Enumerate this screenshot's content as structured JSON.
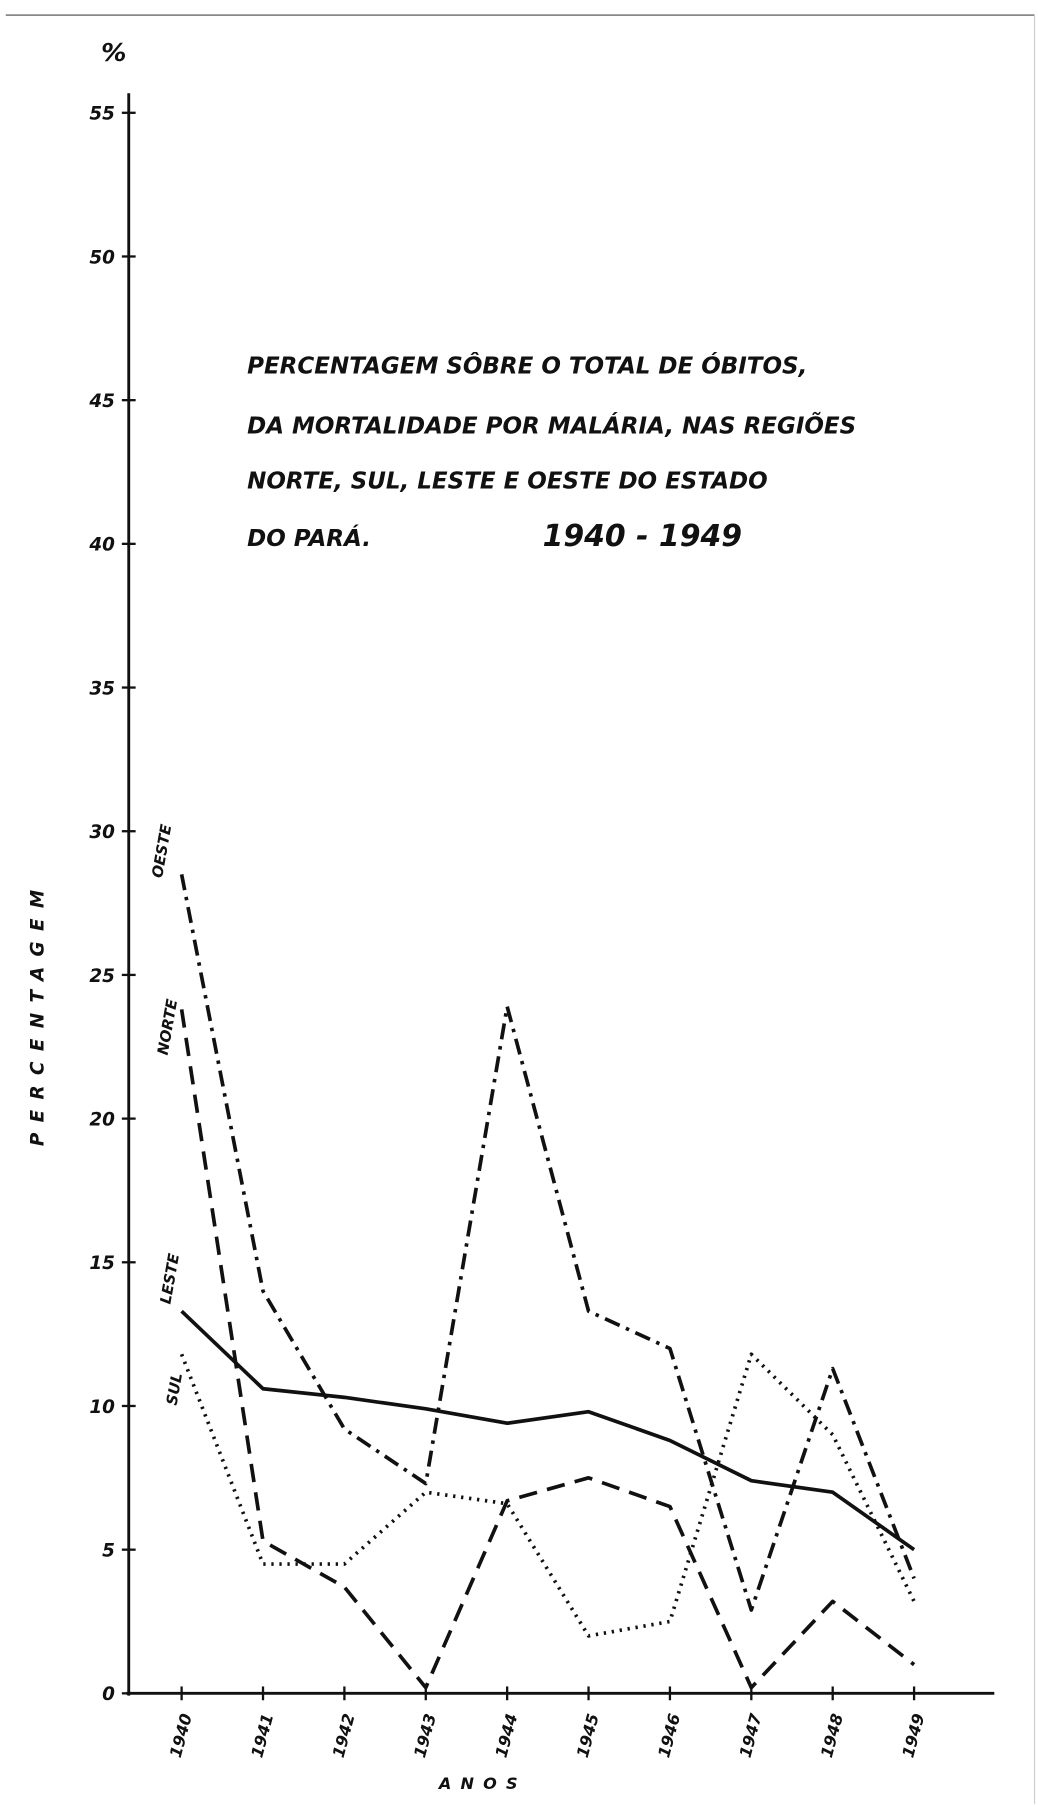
{
  "chart_data": {
    "type": "line",
    "unit_label": "%",
    "title_lines": [
      "PERCENTAGEM SÔBRE O TOTAL DE ÓBITOS,",
      "DA MORTALIDADE POR MALÁRIA, NAS REGIÕES",
      "NORTE, SUL, LESTE E OESTE DO ESTADO",
      "DO PARÁ."
    ],
    "period": "1940 - 1949",
    "y_label": "PERCENTAGEM",
    "x_label": "ANOS",
    "categories": [
      "1940",
      "1941",
      "1942",
      "1943",
      "1944",
      "1945",
      "1946",
      "1947",
      "1948",
      "1949"
    ],
    "series": [
      {
        "name": "OESTE",
        "color": "#111111",
        "dash": "dashdot",
        "values": [
          28.5,
          14.0,
          9.2,
          7.3,
          23.9,
          13.3,
          12.0,
          2.9,
          11.3,
          4.0
        ]
      },
      {
        "name": "NORTE",
        "color": "#111111",
        "dash": "dashed",
        "values": [
          23.8,
          5.3,
          3.7,
          0.2,
          6.7,
          7.5,
          6.5,
          0.2,
          3.2,
          1.0
        ]
      },
      {
        "name": "LESTE",
        "color": "#111111",
        "dash": "solid",
        "values": [
          13.3,
          10.6,
          10.3,
          9.9,
          9.4,
          9.8,
          8.8,
          7.4,
          7.0,
          5.0
        ]
      },
      {
        "name": "SUL",
        "color": "#111111",
        "dash": "dotted",
        "values": [
          11.8,
          4.5,
          4.5,
          7.0,
          6.6,
          2.0,
          2.5,
          11.8,
          9.0,
          3.2
        ]
      }
    ],
    "ylim": [
      0,
      55
    ],
    "yticks": [
      0,
      5,
      10,
      15,
      20,
      25,
      30,
      35,
      40,
      45,
      50,
      55
    ]
  }
}
